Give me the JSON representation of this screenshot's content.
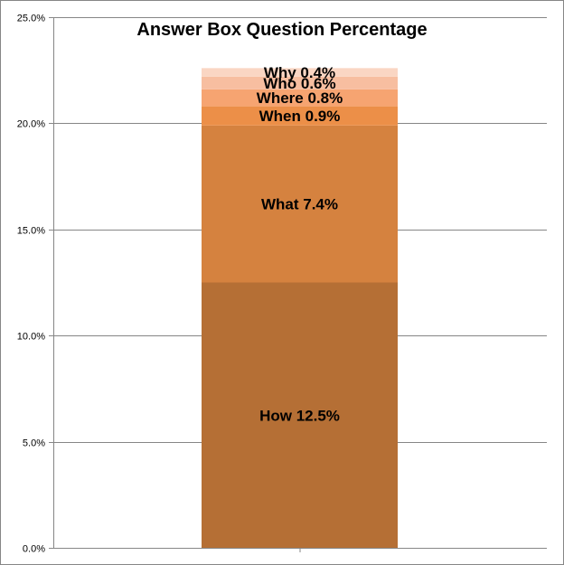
{
  "chart_data": {
    "type": "bar",
    "stacked": true,
    "title": "Answer Box Question Percentage",
    "xlabel": "",
    "ylabel": "",
    "ylim": [
      0,
      25
    ],
    "yticks": [
      0,
      5,
      10,
      15,
      20,
      25
    ],
    "ytick_labels": [
      "0.0%",
      "5.0%",
      "10.0%",
      "15.0%",
      "20.0%",
      "25.0%"
    ],
    "grid": true,
    "legend": "none",
    "categories": [
      ""
    ],
    "series": [
      {
        "name": "How",
        "values": [
          12.5
        ],
        "label": "How 12.5%",
        "color": "#b56f35"
      },
      {
        "name": "What",
        "values": [
          7.4
        ],
        "label": "What 7.4%",
        "color": "#d5823f"
      },
      {
        "name": "When",
        "values": [
          0.9
        ],
        "label": "When 0.9%",
        "color": "#ec8f48"
      },
      {
        "name": "Where",
        "values": [
          0.8
        ],
        "label": "Where 0.8%",
        "color": "#f6a471"
      },
      {
        "name": "Who",
        "values": [
          0.6
        ],
        "label": "Who 0.6%",
        "color": "#f7bea0"
      },
      {
        "name": "Why",
        "values": [
          0.4
        ],
        "label": "Why 0.4%",
        "color": "#fad6c3"
      }
    ]
  }
}
